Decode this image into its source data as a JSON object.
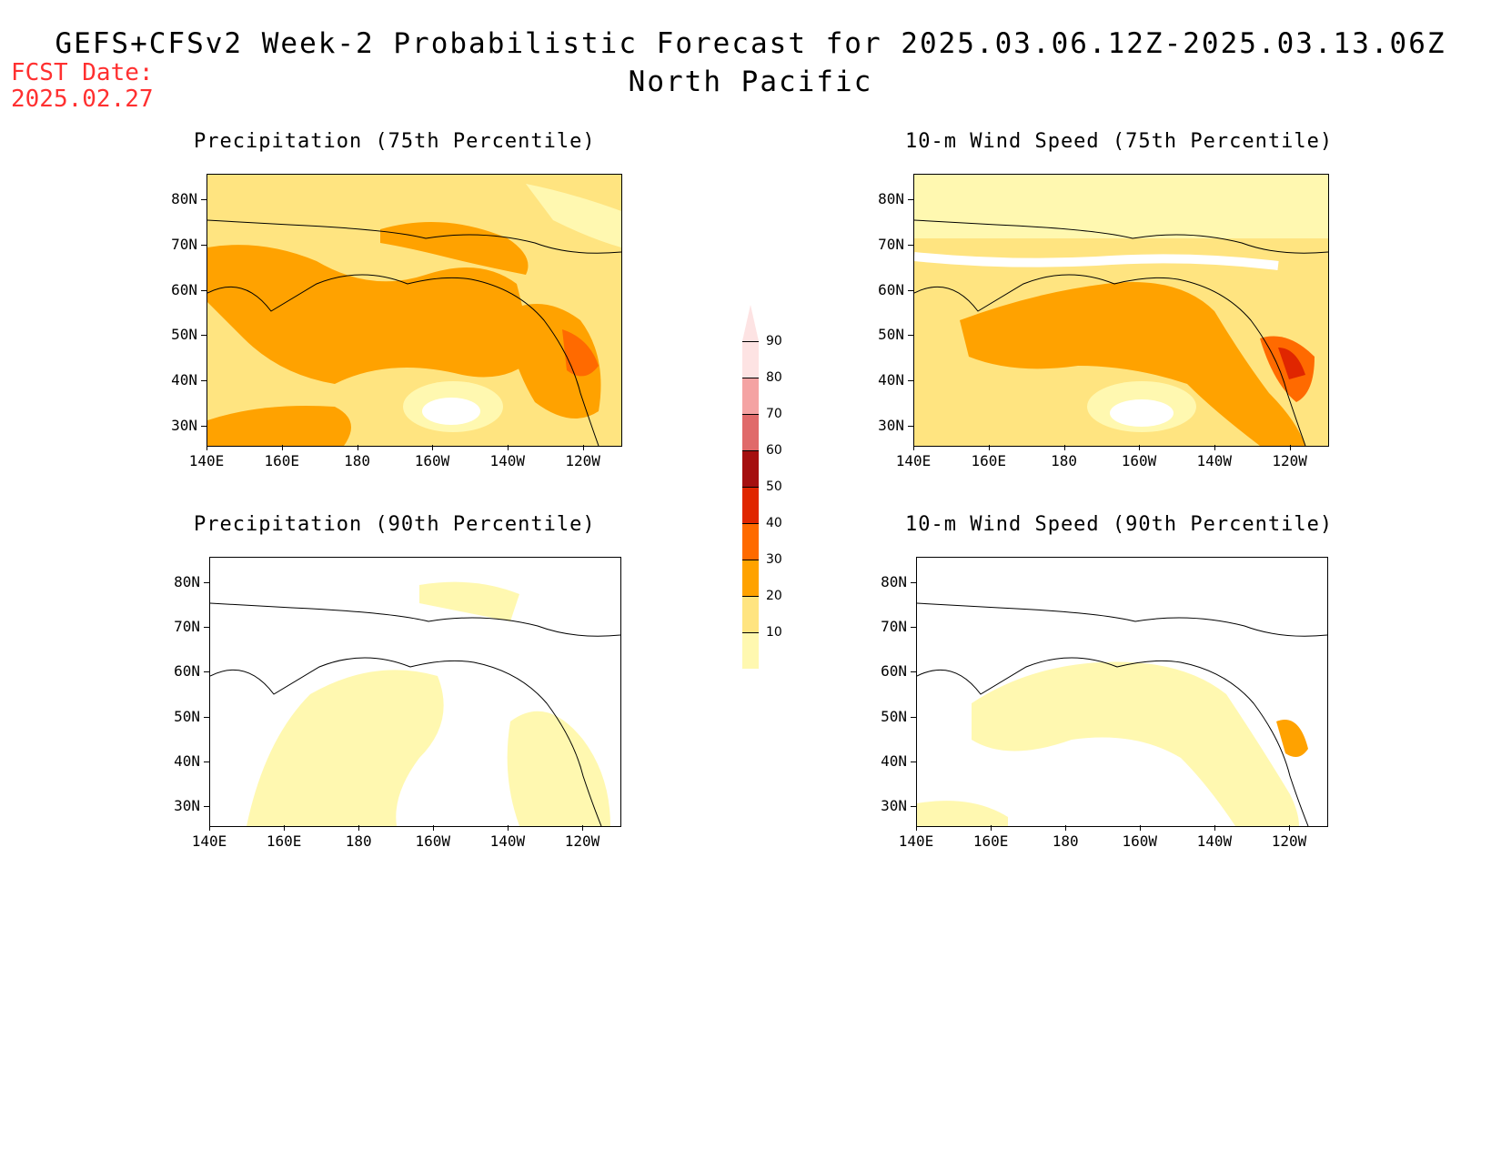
{
  "header": {
    "title": "GEFS+CFSv2 Week-2 Probabilistic Forecast for 2025.03.06.12Z-2025.03.13.06Z",
    "region": "North Pacific",
    "fcst_label": "FCST Date:",
    "fcst_date": "2025.02.27"
  },
  "axes": {
    "lat_labels": [
      "80N",
      "70N",
      "60N",
      "50N",
      "40N",
      "30N"
    ],
    "lon_labels": [
      "140E",
      "160E",
      "180",
      "160W",
      "140W",
      "120W"
    ]
  },
  "panels": [
    {
      "title": "Precipitation (75th Percentile)"
    },
    {
      "title": "10-m Wind Speed (75th Percentile)"
    },
    {
      "title": "Precipitation (90th Percentile)"
    },
    {
      "title": "10-m Wind Speed (90th Percentile)"
    }
  ],
  "colorbar": {
    "labels": [
      "90",
      "80",
      "70",
      "60",
      "50",
      "40",
      "30",
      "20",
      "10"
    ],
    "colors": [
      "#fde3e3",
      "#f4a3a3",
      "#e06a6a",
      "#a50f0f",
      "#e02600",
      "#ff6a00",
      "#ffa200",
      "#ffe480",
      "#fff8b0"
    ]
  }
}
